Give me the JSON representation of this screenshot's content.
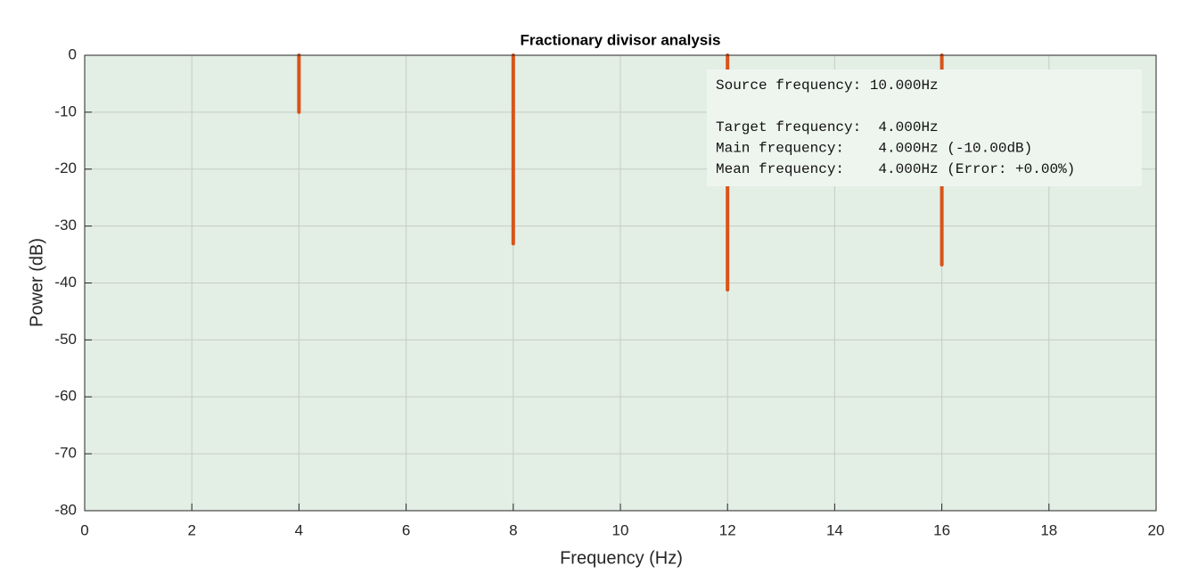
{
  "chart_data": {
    "type": "stem",
    "title": "Fractionary divisor analysis",
    "x_label": "Frequency (Hz)",
    "y_label": "Power (dB)",
    "x": [
      4,
      8,
      12,
      16
    ],
    "values": [
      -10,
      -33.1,
      -41.2,
      -36.8
    ],
    "color": "#d95319",
    "xlim": [
      0,
      20
    ],
    "ylim": [
      -80,
      0
    ],
    "xticks": [
      0,
      2,
      4,
      6,
      8,
      10,
      12,
      14,
      16,
      18,
      20
    ],
    "yticks": [
      0,
      -10,
      -20,
      -30,
      -40,
      -50,
      -60,
      -70,
      -80
    ],
    "grid": true,
    "annotation": [
      "Source frequency: 10.000Hz",
      "Target frequency:  4.000Hz",
      "Main frequency:    4.000Hz (-10.00dB)",
      "Mean frequency:    4.000Hz (Error: +0.00%)"
    ]
  }
}
